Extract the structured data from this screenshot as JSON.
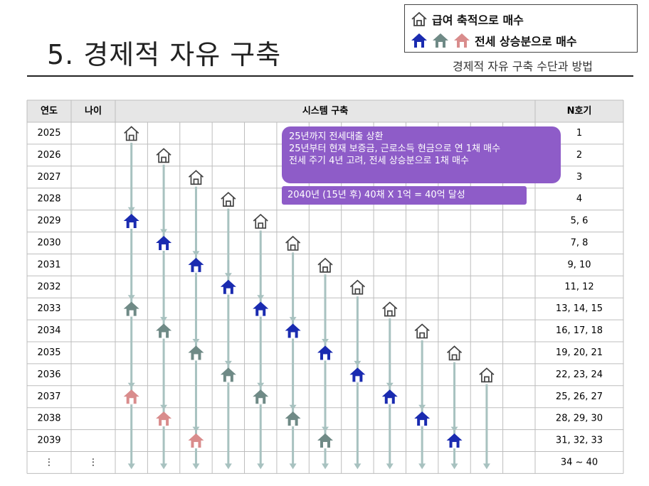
{
  "title": "5. 경제적 자유 구축",
  "subtitle": "경제적 자유 구축 수단과 방법",
  "legend": {
    "item1": "급여 축적으로 매수",
    "item2": "전세 상승분으로 매수",
    "item1_icon": "house-outline-icon",
    "item2_icons": [
      "house-blue-icon",
      "house-gray-icon",
      "house-pink-icon"
    ]
  },
  "table": {
    "headers": {
      "year": "연도",
      "age": "나이",
      "system": "시스템 구축",
      "count": "N호기"
    },
    "rows": [
      {
        "year": "2025",
        "age": "",
        "count": "1"
      },
      {
        "year": "2026",
        "age": "",
        "count": "2"
      },
      {
        "year": "2027",
        "age": "",
        "count": "3"
      },
      {
        "year": "2028",
        "age": "",
        "count": "4"
      },
      {
        "year": "2029",
        "age": "",
        "count": "5, 6"
      },
      {
        "year": "2030",
        "age": "",
        "count": "7, 8"
      },
      {
        "year": "2031",
        "age": "",
        "count": "9, 10"
      },
      {
        "year": "2032",
        "age": "",
        "count": "11, 12"
      },
      {
        "year": "2033",
        "age": "",
        "count": "13, 14, 15"
      },
      {
        "year": "2034",
        "age": "",
        "count": "16, 17, 18"
      },
      {
        "year": "2035",
        "age": "",
        "count": "19, 20, 21"
      },
      {
        "year": "2036",
        "age": "",
        "count": "22, 23, 24"
      },
      {
        "year": "2037",
        "age": "",
        "count": "25, 26, 27"
      },
      {
        "year": "2038",
        "age": "",
        "count": "28, 29, 30"
      },
      {
        "year": "2039",
        "age": "",
        "count": "31, 32, 33"
      },
      {
        "year": "⋮",
        "age": "⋮",
        "count": "34 ~ 40"
      }
    ]
  },
  "callout1": {
    "line1": "25년까지 전세대출 상환",
    "line2": "25년부터 현재 보증금, 근로소득 현금으로 연 1채 매수",
    "line3": "전세 주기 4년 고려, 전세 상승분으로 1채 매수"
  },
  "callout2": {
    "text": "2040년 (15년  후) 40채 X 1억 = 40억 달성"
  },
  "colors": {
    "header_bg": "#e6e6e6",
    "grid_line": "#bdbdbd",
    "arrow": "#a8c2c0",
    "house_outline": "#444444",
    "house_blue": "#1a2bb0",
    "house_gray": "#6f8a86",
    "house_pink": "#d98c8c",
    "callout": "#8e5cc8"
  },
  "houses": [
    {
      "col": 0,
      "row": 0,
      "type": "outline"
    },
    {
      "col": 0,
      "row": 4,
      "type": "blue"
    },
    {
      "col": 0,
      "row": 8,
      "type": "gray"
    },
    {
      "col": 0,
      "row": 12,
      "type": "pink"
    },
    {
      "col": 1,
      "row": 1,
      "type": "outline"
    },
    {
      "col": 1,
      "row": 5,
      "type": "blue"
    },
    {
      "col": 1,
      "row": 9,
      "type": "gray"
    },
    {
      "col": 1,
      "row": 13,
      "type": "pink"
    },
    {
      "col": 2,
      "row": 2,
      "type": "outline"
    },
    {
      "col": 2,
      "row": 6,
      "type": "blue"
    },
    {
      "col": 2,
      "row": 10,
      "type": "gray"
    },
    {
      "col": 2,
      "row": 14,
      "type": "pink"
    },
    {
      "col": 3,
      "row": 3,
      "type": "outline"
    },
    {
      "col": 3,
      "row": 7,
      "type": "blue"
    },
    {
      "col": 3,
      "row": 11,
      "type": "gray"
    },
    {
      "col": 4,
      "row": 4,
      "type": "outline"
    },
    {
      "col": 4,
      "row": 8,
      "type": "blue"
    },
    {
      "col": 4,
      "row": 12,
      "type": "gray"
    },
    {
      "col": 5,
      "row": 5,
      "type": "outline"
    },
    {
      "col": 5,
      "row": 9,
      "type": "blue"
    },
    {
      "col": 5,
      "row": 13,
      "type": "gray"
    },
    {
      "col": 6,
      "row": 6,
      "type": "outline"
    },
    {
      "col": 6,
      "row": 10,
      "type": "blue"
    },
    {
      "col": 6,
      "row": 14,
      "type": "gray"
    },
    {
      "col": 7,
      "row": 7,
      "type": "outline"
    },
    {
      "col": 7,
      "row": 11,
      "type": "blue"
    },
    {
      "col": 8,
      "row": 8,
      "type": "outline"
    },
    {
      "col": 8,
      "row": 12,
      "type": "blue"
    },
    {
      "col": 9,
      "row": 9,
      "type": "outline"
    },
    {
      "col": 9,
      "row": 13,
      "type": "blue"
    },
    {
      "col": 10,
      "row": 10,
      "type": "outline"
    },
    {
      "col": 10,
      "row": 14,
      "type": "blue"
    },
    {
      "col": 11,
      "row": 11,
      "type": "outline"
    }
  ]
}
